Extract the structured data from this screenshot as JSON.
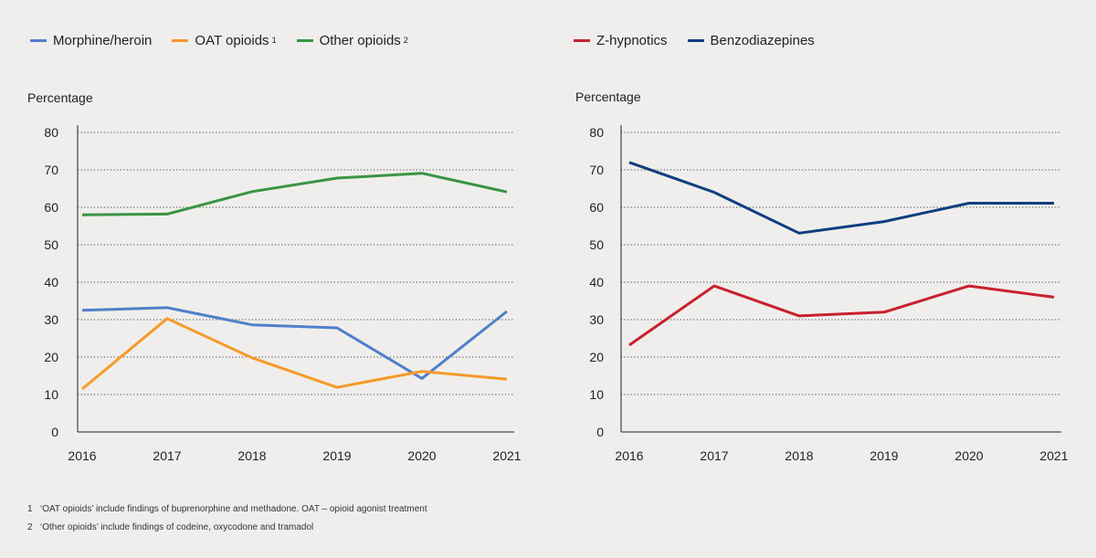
{
  "colors": {
    "background": "#f0eeec",
    "morphine": "#4f80c8",
    "oat": "#f59a2a",
    "other": "#3a9444",
    "zhyp": "#c8202e",
    "benzo": "#0f3f7f",
    "grid": "#444444",
    "axis": "#222222"
  },
  "chart_data": [
    {
      "type": "line",
      "ylabel": "Percentage",
      "ylim": [
        0,
        80
      ],
      "yticks": [
        0,
        10,
        20,
        30,
        40,
        50,
        60,
        70,
        80
      ],
      "x": [
        "2016",
        "2017",
        "2018",
        "2019",
        "2020",
        "2021"
      ],
      "grid": "horizontal dotted",
      "legend": "top-left",
      "series": [
        {
          "name": "Morphine/heroin",
          "sup": "",
          "color_key": "morphine",
          "values": [
            32.5,
            33.2,
            28.6,
            27.8,
            14.3,
            32.2
          ]
        },
        {
          "name": "OAT opioids",
          "sup": "1",
          "color_key": "oat",
          "values": [
            11.5,
            30.3,
            19.8,
            11.9,
            16.2,
            14.1
          ]
        },
        {
          "name": "Other opioids",
          "sup": "2",
          "color_key": "other",
          "values": [
            58,
            58.2,
            64.2,
            67.8,
            69.1,
            64.1
          ]
        }
      ]
    },
    {
      "type": "line",
      "ylabel": "Percentage",
      "ylim": [
        0,
        80
      ],
      "yticks": [
        0,
        10,
        20,
        30,
        40,
        50,
        60,
        70,
        80
      ],
      "x": [
        "2016",
        "2017",
        "2018",
        "2019",
        "2020",
        "2021"
      ],
      "grid": "horizontal dotted",
      "legend": "top-left",
      "series": [
        {
          "name": "Z-hypnotics",
          "sup": "",
          "color_key": "zhyp",
          "values": [
            23.2,
            39.0,
            31.0,
            32.0,
            39.0,
            36.0
          ]
        },
        {
          "name": "Benzodiazepines",
          "sup": "",
          "color_key": "benzo",
          "values": [
            72.0,
            64.0,
            53.1,
            56.2,
            61.1,
            61.1
          ]
        }
      ]
    }
  ],
  "footnotes": [
    {
      "num": "1",
      "text": "‘OAT opioids’ include findings of buprenorphine and methadone. OAT – opioid agonist treatment"
    },
    {
      "num": "2",
      "text": "‘Other opioids’ include findings of codeine, oxycodone and tramadol"
    }
  ]
}
